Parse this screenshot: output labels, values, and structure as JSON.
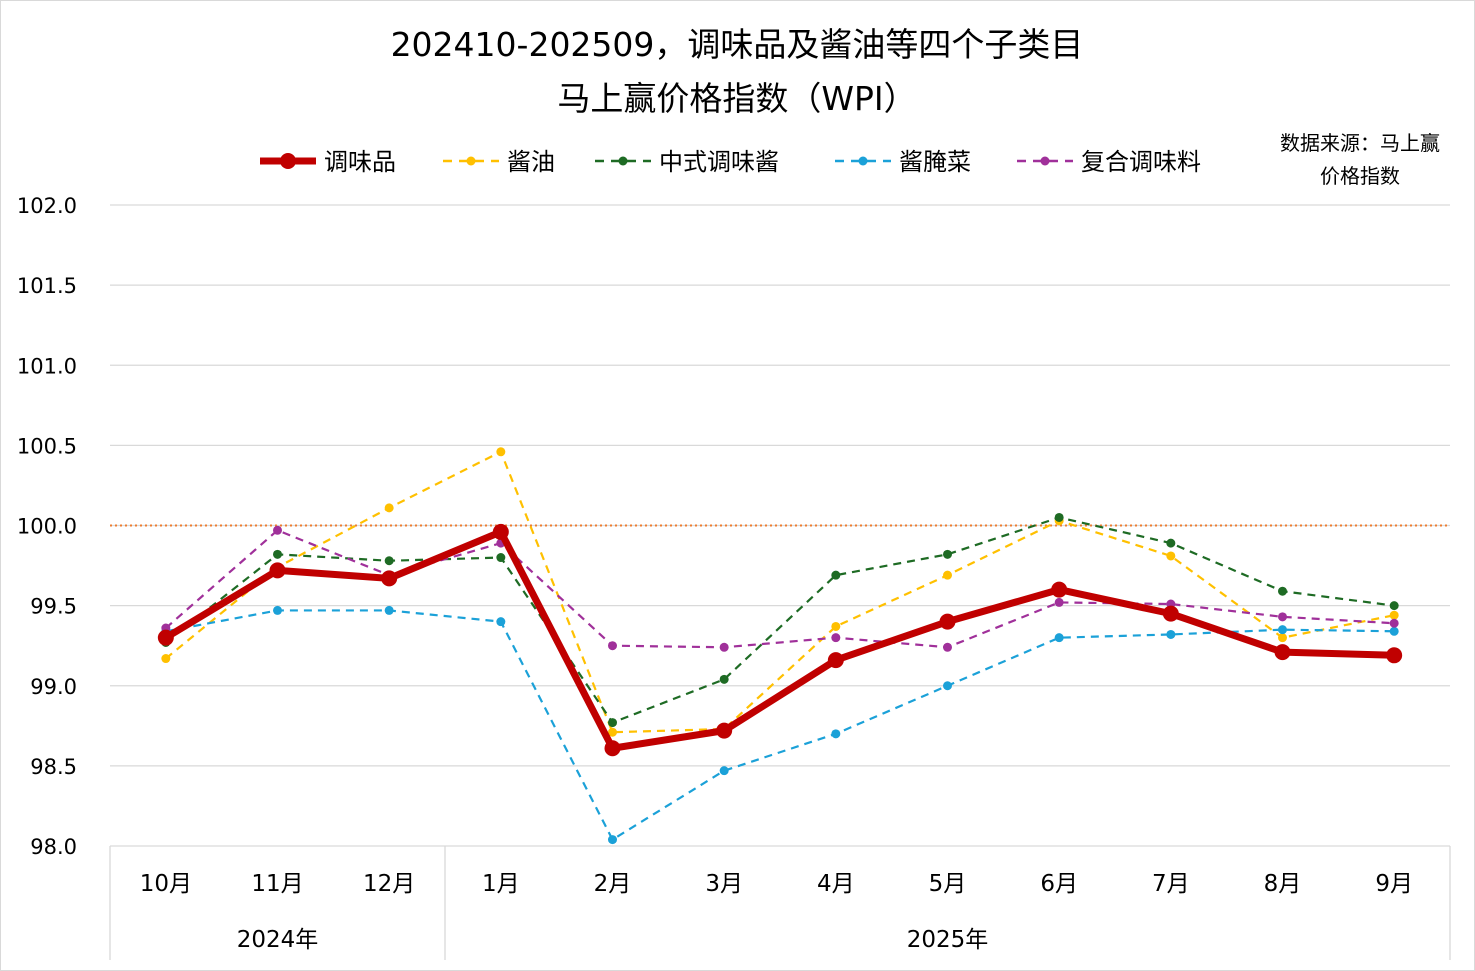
{
  "chart_data": {
    "type": "line",
    "title_line1": "202410-202509，调味品及酱油等四个子类目",
    "title_line2": "马上赢价格指数（WPI）",
    "source_line1": "数据来源：马上赢",
    "source_line2": "价格指数",
    "categories": [
      "10月",
      "11月",
      "12月",
      "1月",
      "2月",
      "3月",
      "4月",
      "5月",
      "6月",
      "7月",
      "8月",
      "9月"
    ],
    "year_groups": [
      {
        "label": "2024年",
        "count": 3
      },
      {
        "label": "2025年",
        "count": 9
      }
    ],
    "ylim": [
      98.0,
      102.0
    ],
    "yticks": [
      "98.0",
      "98.5",
      "99.0",
      "99.5",
      "100.0",
      "100.5",
      "101.0",
      "101.5",
      "102.0"
    ],
    "reference_line": 100.0,
    "legend_position": "top",
    "grid": true,
    "series": [
      {
        "name": "调味品",
        "color": "#C00000",
        "style": "solid",
        "values": [
          99.3,
          99.72,
          99.67,
          99.96,
          98.61,
          98.72,
          99.16,
          99.4,
          99.6,
          99.45,
          99.21,
          99.19
        ]
      },
      {
        "name": "酱油",
        "color": "#FFC000",
        "style": "dashed",
        "values": [
          99.17,
          99.74,
          100.11,
          100.46,
          98.71,
          98.73,
          99.37,
          99.69,
          100.03,
          99.81,
          99.3,
          99.44
        ]
      },
      {
        "name": "中式调味酱",
        "color": "#1E6B24",
        "style": "dashed",
        "values": [
          99.27,
          99.82,
          99.78,
          99.8,
          98.77,
          99.04,
          99.69,
          99.82,
          100.05,
          99.89,
          99.59,
          99.5
        ]
      },
      {
        "name": "酱腌菜",
        "color": "#1BA1D8",
        "style": "dashed",
        "values": [
          99.34,
          99.47,
          99.47,
          99.4,
          98.04,
          98.47,
          98.7,
          99.0,
          99.3,
          99.32,
          99.35,
          99.34
        ]
      },
      {
        "name": "复合调味料",
        "color": "#A0309A",
        "style": "dashed",
        "values": [
          99.36,
          99.97,
          99.69,
          99.89,
          99.25,
          99.24,
          99.3,
          99.24,
          99.52,
          99.51,
          99.43,
          99.39
        ]
      }
    ]
  }
}
